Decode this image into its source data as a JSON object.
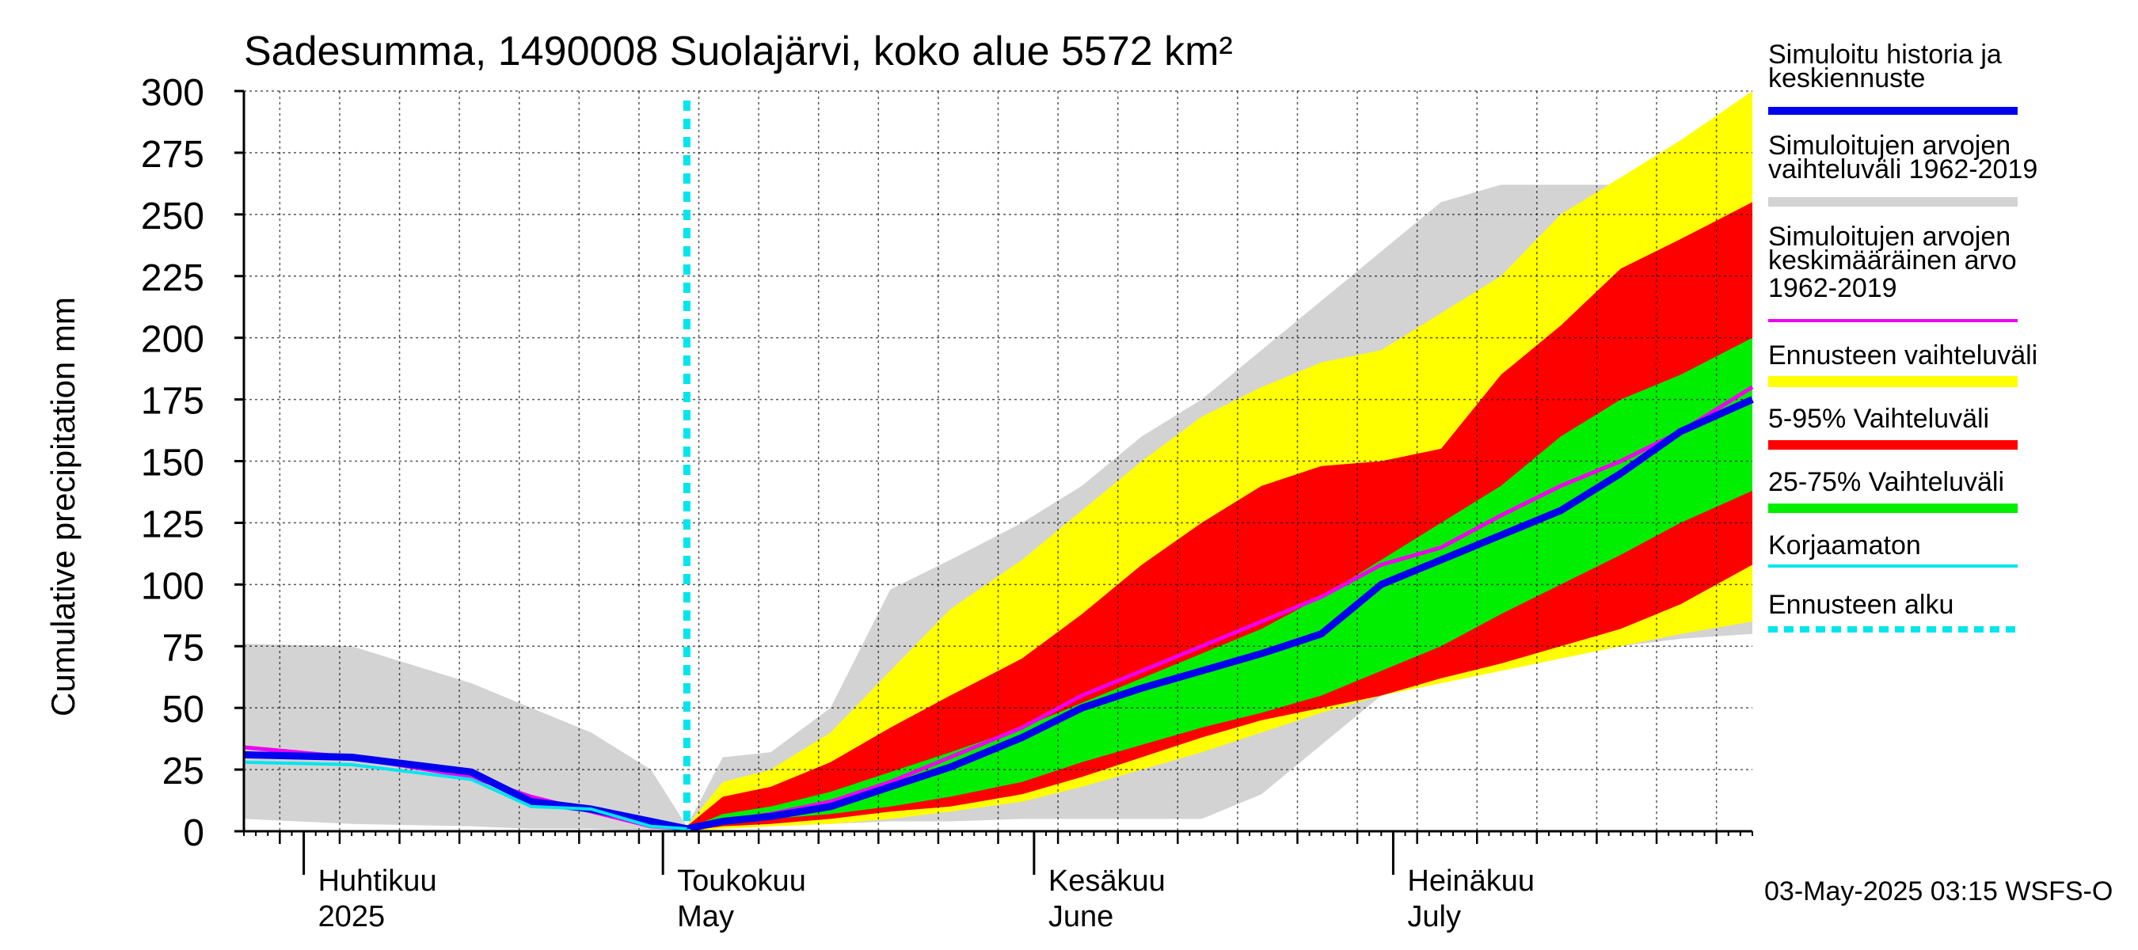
{
  "chart_data": {
    "type": "area",
    "title": "Sadesumma, 1490008 Suolajärvi, koko alue 5572 km²",
    "ylabel": "Cumulative precipitation   mm",
    "xlabel": "",
    "ylim": [
      0,
      300
    ],
    "yticks": [
      0,
      25,
      50,
      75,
      100,
      125,
      150,
      175,
      200,
      225,
      250,
      275,
      300
    ],
    "xlim": [
      "2025-03-27",
      "2025-07-31"
    ],
    "grid": true,
    "legend_position": "right",
    "forecast_start": "2025-05-03",
    "month_labels": [
      {
        "date": "2025-04-01",
        "fi": "Huhtikuu",
        "en": "2025"
      },
      {
        "date": "2025-05-01",
        "fi": "Toukokuu",
        "en": "May"
      },
      {
        "date": "2025-06-01",
        "fi": "Kesäkuu",
        "en": "June"
      },
      {
        "date": "2025-07-01",
        "fi": "Heinäkuu",
        "en": "July"
      }
    ],
    "dates": [
      "2025-03-27",
      "2025-04-05",
      "2025-04-15",
      "2025-04-20",
      "2025-04-25",
      "2025-04-30",
      "2025-05-03",
      "2025-05-06",
      "2025-05-10",
      "2025-05-15",
      "2025-05-20",
      "2025-05-25",
      "2025-05-31",
      "2025-06-05",
      "2025-06-10",
      "2025-06-15",
      "2025-06-20",
      "2025-06-25",
      "2025-06-30",
      "2025-07-05",
      "2025-07-10",
      "2025-07-15",
      "2025-07-20",
      "2025-07-25",
      "2025-07-31"
    ],
    "series": [
      {
        "name": "Simuloitujen arvojen vaihteluväli 1962-2019",
        "role": "band",
        "color": "#d3d3d3",
        "upper": [
          76,
          75,
          60,
          50,
          40,
          25,
          2,
          30,
          32,
          50,
          98,
          110,
          125,
          140,
          160,
          175,
          195,
          215,
          235,
          255,
          262,
          262,
          262,
          264,
          270
        ],
        "lower": [
          5,
          3,
          2,
          1,
          1,
          0,
          0,
          1,
          2,
          3,
          4,
          4,
          5,
          5,
          5,
          5,
          15,
          35,
          55,
          62,
          65,
          70,
          75,
          78,
          80
        ]
      },
      {
        "name": "Ennusteen vaihteluväli",
        "role": "band",
        "color": "#ffff00",
        "upper": [
          null,
          null,
          null,
          null,
          null,
          null,
          2,
          20,
          25,
          40,
          65,
          90,
          110,
          130,
          150,
          168,
          180,
          190,
          195,
          210,
          225,
          250,
          265,
          280,
          300
        ],
        "lower": [
          null,
          null,
          null,
          null,
          null,
          null,
          0,
          1,
          2,
          3,
          5,
          8,
          12,
          18,
          25,
          32,
          40,
          48,
          55,
          60,
          65,
          70,
          75,
          80,
          85
        ]
      },
      {
        "name": "5-95% Vaihteluväli",
        "role": "band",
        "color": "#ff0000",
        "upper": [
          null,
          null,
          null,
          null,
          null,
          null,
          2,
          14,
          18,
          28,
          42,
          55,
          70,
          88,
          108,
          125,
          140,
          148,
          150,
          155,
          185,
          205,
          228,
          240,
          255
        ],
        "lower": [
          null,
          null,
          null,
          null,
          null,
          null,
          0,
          2,
          3,
          5,
          8,
          10,
          15,
          22,
          30,
          38,
          45,
          50,
          55,
          62,
          68,
          75,
          82,
          92,
          108
        ]
      },
      {
        "name": "25-75% Vaihteluväli",
        "role": "band",
        "color": "#00ee00",
        "upper": [
          null,
          null,
          null,
          null,
          null,
          null,
          1,
          7,
          10,
          16,
          24,
          32,
          42,
          52,
          62,
          72,
          82,
          95,
          110,
          125,
          140,
          160,
          175,
          185,
          200
        ],
        "lower": [
          null,
          null,
          null,
          null,
          null,
          null,
          0,
          4,
          5,
          7,
          10,
          14,
          20,
          28,
          35,
          42,
          48,
          55,
          65,
          75,
          88,
          100,
          112,
          125,
          138
        ]
      },
      {
        "name": "Simuloitujen arvojen keskimääräinen arvo 1962-2019",
        "role": "line",
        "color": "#ee00ee",
        "values": [
          34,
          30,
          22,
          14,
          8,
          2,
          1,
          4,
          7,
          12,
          20,
          30,
          42,
          55,
          65,
          75,
          85,
          95,
          108,
          115,
          128,
          140,
          150,
          162,
          180
        ]
      },
      {
        "name": "Simuloitu historia ja keskiennuste",
        "role": "line",
        "color": "#0000ee",
        "values": [
          31,
          30,
          24,
          12,
          9,
          4,
          1,
          4,
          6,
          10,
          18,
          26,
          38,
          50,
          58,
          65,
          72,
          80,
          100,
          110,
          120,
          130,
          145,
          162,
          175
        ]
      },
      {
        "name": "Korjaamaton",
        "role": "line",
        "color": "#00e5ee",
        "values": [
          28,
          27,
          21,
          10,
          9,
          2,
          1,
          null,
          null,
          null,
          null,
          null,
          null,
          null,
          null,
          null,
          null,
          null,
          null,
          null,
          null,
          null,
          null,
          null,
          null
        ]
      }
    ],
    "legend": [
      {
        "label": "Simuloitu historia ja keskiennuste",
        "color": "#0000ee",
        "style": "line-thick"
      },
      {
        "label": "Simuloitujen arvojen vaihteluväli 1962-2019",
        "color": "#d3d3d3",
        "style": "line-thick"
      },
      {
        "label": "Simuloitujen arvojen keskimääräinen arvo 1962-2019",
        "color": "#ee00ee",
        "style": "line"
      },
      {
        "label": "Ennusteen vaihteluväli",
        "color": "#ffff00",
        "style": "line-thick"
      },
      {
        "label": "5-95% Vaihteluväli",
        "color": "#ff0000",
        "style": "line-thick"
      },
      {
        "label": "25-75% Vaihteluväli",
        "color": "#00ee00",
        "style": "line-thick"
      },
      {
        "label": "Korjaamaton",
        "color": "#00e5ee",
        "style": "line"
      },
      {
        "label": "Ennusteen alku",
        "color": "#00e5ee",
        "style": "dotted"
      }
    ],
    "footer": "03-May-2025 03:15 WSFS-O"
  }
}
